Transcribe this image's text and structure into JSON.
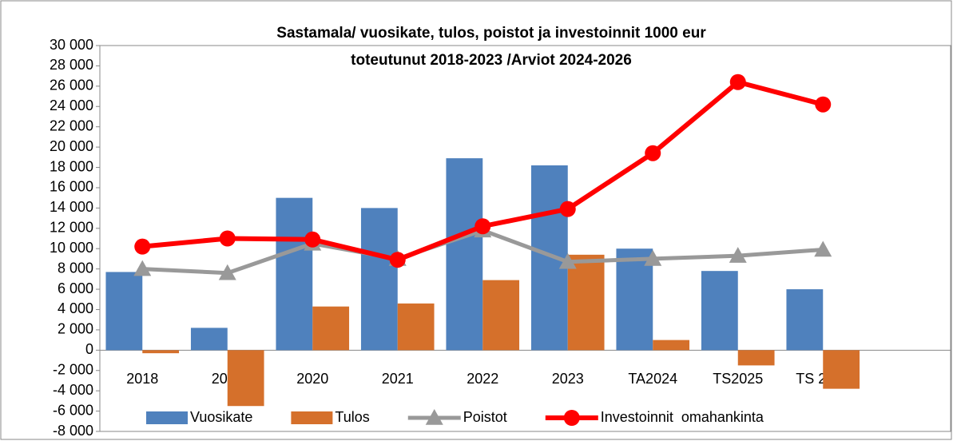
{
  "chart_data": {
    "type": "bar-line",
    "title": "Sastamala/ vuosikate, tulos, poistot ja investoinnit 1000 eur",
    "subtitle": "toteutunut 2018-2023 /Arviot 2024-2026",
    "categories": [
      "2018",
      "2019",
      "2020",
      "2021",
      "2022",
      "2023",
      "TA2024",
      "TS2025",
      "TS 2026",
      null
    ],
    "series": [
      {
        "name": "Vuosikate",
        "kind": "bar",
        "color": "#4f81bd",
        "values": [
          7700,
          2200,
          15000,
          14000,
          18900,
          18200,
          10000,
          7800,
          6000,
          null
        ]
      },
      {
        "name": "Tulos",
        "kind": "bar",
        "color": "#d5702b",
        "values": [
          -300,
          -5500,
          4300,
          4600,
          6900,
          9400,
          1000,
          -1500,
          -3800,
          null
        ]
      },
      {
        "name": "Poistot",
        "kind": "line",
        "marker": "triangle",
        "color": "#999999",
        "values": [
          8000,
          7600,
          10500,
          9000,
          11800,
          8700,
          9000,
          9300,
          9900,
          null
        ]
      },
      {
        "name": "Investoinnit  omahankinta",
        "kind": "line",
        "marker": "circle",
        "color": "#ff0000",
        "values": [
          10200,
          11000,
          10900,
          8900,
          12200,
          13900,
          19400,
          26400,
          24200,
          null
        ]
      }
    ],
    "ylim": [
      -8000,
      30000
    ],
    "yticks": [
      {
        "value": 30000,
        "label": "30 000"
      },
      {
        "value": 28000,
        "label": "28 000"
      },
      {
        "value": 26000,
        "label": "26 000"
      },
      {
        "value": 24000,
        "label": "24 000"
      },
      {
        "value": 22000,
        "label": "22 000"
      },
      {
        "value": 20000,
        "label": "20 000"
      },
      {
        "value": 18000,
        "label": "18 000"
      },
      {
        "value": 16000,
        "label": "16 000"
      },
      {
        "value": 14000,
        "label": "14 000"
      },
      {
        "value": 12000,
        "label": "12 000"
      },
      {
        "value": 10000,
        "label": "10 000"
      },
      {
        "value": 8000,
        "label": "8 000"
      },
      {
        "value": 6000,
        "label": "6 000"
      },
      {
        "value": 4000,
        "label": "4 000"
      },
      {
        "value": 2000,
        "label": "2 000"
      },
      0,
      {
        "value": -2000,
        "label": "-2 000"
      },
      {
        "value": -4000,
        "label": "-4 000"
      },
      {
        "value": -6000,
        "label": "-6 000"
      },
      {
        "value": -8000,
        "label": "-8 000"
      }
    ],
    "grid": false,
    "legend": "bottom"
  }
}
